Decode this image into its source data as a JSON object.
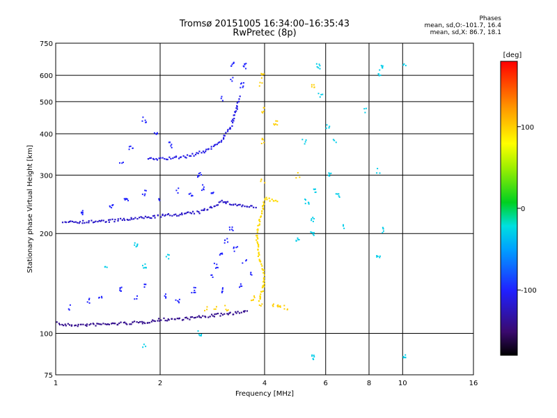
{
  "titles": {
    "line1": "Tromsø 20151005 16:34:00–16:35:43",
    "line2": "RwPretec (8p)"
  },
  "phases": {
    "heading": "Phases",
    "line_o": "mean, sd,O:–101.7, 16.4",
    "line_x": "mean, sd,X:  86.7, 18.1"
  },
  "chart_data": {
    "type": "scatter",
    "xlabel": "Frequency [MHz]",
    "ylabel": "Stationary phase Virtual Height [km]",
    "xscale": "log",
    "yscale": "log",
    "xlim": [
      1,
      16
    ],
    "ylim": [
      75,
      750
    ],
    "x_ticks": [
      1,
      2,
      4,
      6,
      8,
      10,
      16
    ],
    "y_ticks": [
      75,
      100,
      200,
      300,
      400,
      500,
      600,
      750
    ],
    "grid": true,
    "colorbar": {
      "label": "[deg]",
      "range": [
        -180,
        180
      ],
      "ticks": [
        100,
        0,
        -100
      ]
    },
    "series": [
      {
        "trace": "O-mode E-F1 low trace",
        "mode": "segments",
        "phase": -140,
        "segments": [
          [
            1.0,
            108
          ],
          [
            1.05,
            106
          ],
          [
            1.2,
            106
          ],
          [
            1.5,
            107
          ],
          [
            1.8,
            108
          ],
          [
            2.0,
            110
          ],
          [
            2.4,
            111
          ],
          [
            2.8,
            113
          ],
          [
            3.2,
            115
          ],
          [
            3.6,
            116
          ]
        ]
      },
      {
        "trace": "O-mode upper F2 trace",
        "mode": "segments",
        "phase": -120,
        "segments": [
          [
            1.05,
            218
          ],
          [
            1.2,
            217
          ],
          [
            1.4,
            218
          ],
          [
            1.7,
            222
          ],
          [
            2.0,
            226
          ],
          [
            2.3,
            229
          ],
          [
            2.6,
            232
          ],
          [
            2.8,
            240
          ],
          [
            2.9,
            245
          ],
          [
            3.0,
            250
          ],
          [
            3.2,
            246
          ],
          [
            3.5,
            242
          ],
          [
            3.8,
            240
          ]
        ]
      },
      {
        "trace": "O-mode cusp branch",
        "mode": "segments",
        "phase": -110,
        "segments": [
          [
            1.85,
            335
          ],
          [
            2.1,
            337
          ],
          [
            2.4,
            342
          ],
          [
            2.7,
            355
          ],
          [
            2.9,
            370
          ],
          [
            3.05,
            390
          ],
          [
            3.2,
            420
          ],
          [
            3.3,
            470
          ],
          [
            3.4,
            520
          ]
        ]
      },
      {
        "trace": "O-mode scattered F-region points",
        "mode": "points",
        "phase": -100,
        "points": [
          [
            1.1,
            120
          ],
          [
            1.25,
            125
          ],
          [
            1.35,
            130
          ],
          [
            1.55,
            135
          ],
          [
            1.7,
            128
          ],
          [
            1.8,
            140
          ],
          [
            2.05,
            130
          ],
          [
            2.25,
            125
          ],
          [
            2.5,
            135
          ],
          [
            1.2,
            230
          ],
          [
            1.45,
            240
          ],
          [
            1.6,
            252
          ],
          [
            1.8,
            265
          ],
          [
            2.0,
            250
          ],
          [
            2.25,
            270
          ],
          [
            2.45,
            262
          ],
          [
            2.65,
            275
          ],
          [
            2.85,
            265
          ],
          [
            1.55,
            330
          ],
          [
            1.65,
            360
          ],
          [
            1.8,
            440
          ],
          [
            1.95,
            400
          ],
          [
            2.15,
            370
          ],
          [
            2.6,
            300
          ],
          [
            3.25,
            650
          ],
          [
            3.5,
            640
          ],
          [
            3.45,
            560
          ],
          [
            3.2,
            580
          ],
          [
            3.0,
            510
          ],
          [
            2.9,
            160
          ],
          [
            3.0,
            175
          ],
          [
            3.1,
            190
          ],
          [
            3.2,
            205
          ],
          [
            3.3,
            180
          ],
          [
            3.5,
            165
          ],
          [
            3.4,
            140
          ],
          [
            3.65,
            150
          ],
          [
            2.8,
            150
          ],
          [
            3.0,
            135
          ]
        ]
      },
      {
        "trace": "X-mode trace",
        "mode": "segments",
        "phase": 95,
        "segments": [
          [
            3.85,
            125
          ],
          [
            3.95,
            135
          ],
          [
            4.0,
            150
          ],
          [
            3.85,
            170
          ],
          [
            3.8,
            195
          ],
          [
            3.85,
            215
          ],
          [
            3.95,
            240
          ],
          [
            4.0,
            255
          ],
          [
            4.2,
            252
          ],
          [
            4.4,
            250
          ]
        ]
      },
      {
        "trace": "X-mode scattered points",
        "mode": "points",
        "phase": 100,
        "points": [
          [
            3.7,
            128
          ],
          [
            3.9,
            122
          ],
          [
            4.2,
            122
          ],
          [
            4.4,
            121
          ],
          [
            4.6,
            120
          ],
          [
            2.7,
            118
          ],
          [
            2.9,
            118
          ],
          [
            3.1,
            119
          ],
          [
            3.95,
            290
          ],
          [
            3.95,
            380
          ],
          [
            3.95,
            470
          ],
          [
            3.9,
            560
          ],
          [
            3.95,
            600
          ],
          [
            4.3,
            430
          ],
          [
            5.5,
            560
          ],
          [
            5.0,
            300
          ]
        ]
      },
      {
        "trace": "high-frequency sparse echoes",
        "mode": "points",
        "phase": -30,
        "points": [
          [
            5.7,
            640
          ],
          [
            5.8,
            520
          ],
          [
            6.1,
            420
          ],
          [
            6.4,
            380
          ],
          [
            6.2,
            300
          ],
          [
            6.5,
            260
          ],
          [
            6.8,
            210
          ],
          [
            5.5,
            220
          ],
          [
            5.3,
            250
          ],
          [
            5.6,
            270
          ],
          [
            7.8,
            470
          ],
          [
            8.5,
            310
          ],
          [
            8.6,
            600
          ],
          [
            8.7,
            630
          ],
          [
            10.1,
            650
          ],
          [
            8.7,
            205
          ],
          [
            5.2,
            380
          ],
          [
            5.0,
            190
          ],
          [
            5.5,
            200
          ],
          [
            8.5,
            170
          ],
          [
            5.5,
            85
          ],
          [
            10.1,
            85
          ],
          [
            1.4,
            160
          ],
          [
            1.7,
            185
          ],
          [
            1.8,
            92
          ],
          [
            2.1,
            170
          ],
          [
            2.6,
            100
          ],
          [
            1.8,
            160
          ]
        ]
      }
    ]
  }
}
